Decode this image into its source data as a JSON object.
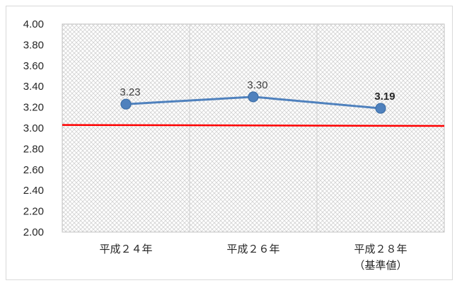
{
  "chart_data": {
    "type": "line",
    "categories": [
      [
        "平成２４年"
      ],
      [
        "平成２６年"
      ],
      [
        "平成２８年",
        "（基準値）"
      ]
    ],
    "series": [
      {
        "values": [
          3.23,
          3.3,
          3.19
        ],
        "data_labels": [
          "3.23",
          "3.30",
          "3.19"
        ],
        "color": "#4f81bd"
      }
    ],
    "reference_line": {
      "start": 3.03,
      "end": 3.02,
      "color": "#ff0000"
    },
    "ylim": [
      2.0,
      4.0
    ],
    "yticks": [
      "4.00",
      "3.80",
      "3.60",
      "3.40",
      "3.20",
      "3.00",
      "2.80",
      "2.60",
      "2.40",
      "2.20",
      "2.00"
    ],
    "grid": false,
    "legend": "none"
  }
}
